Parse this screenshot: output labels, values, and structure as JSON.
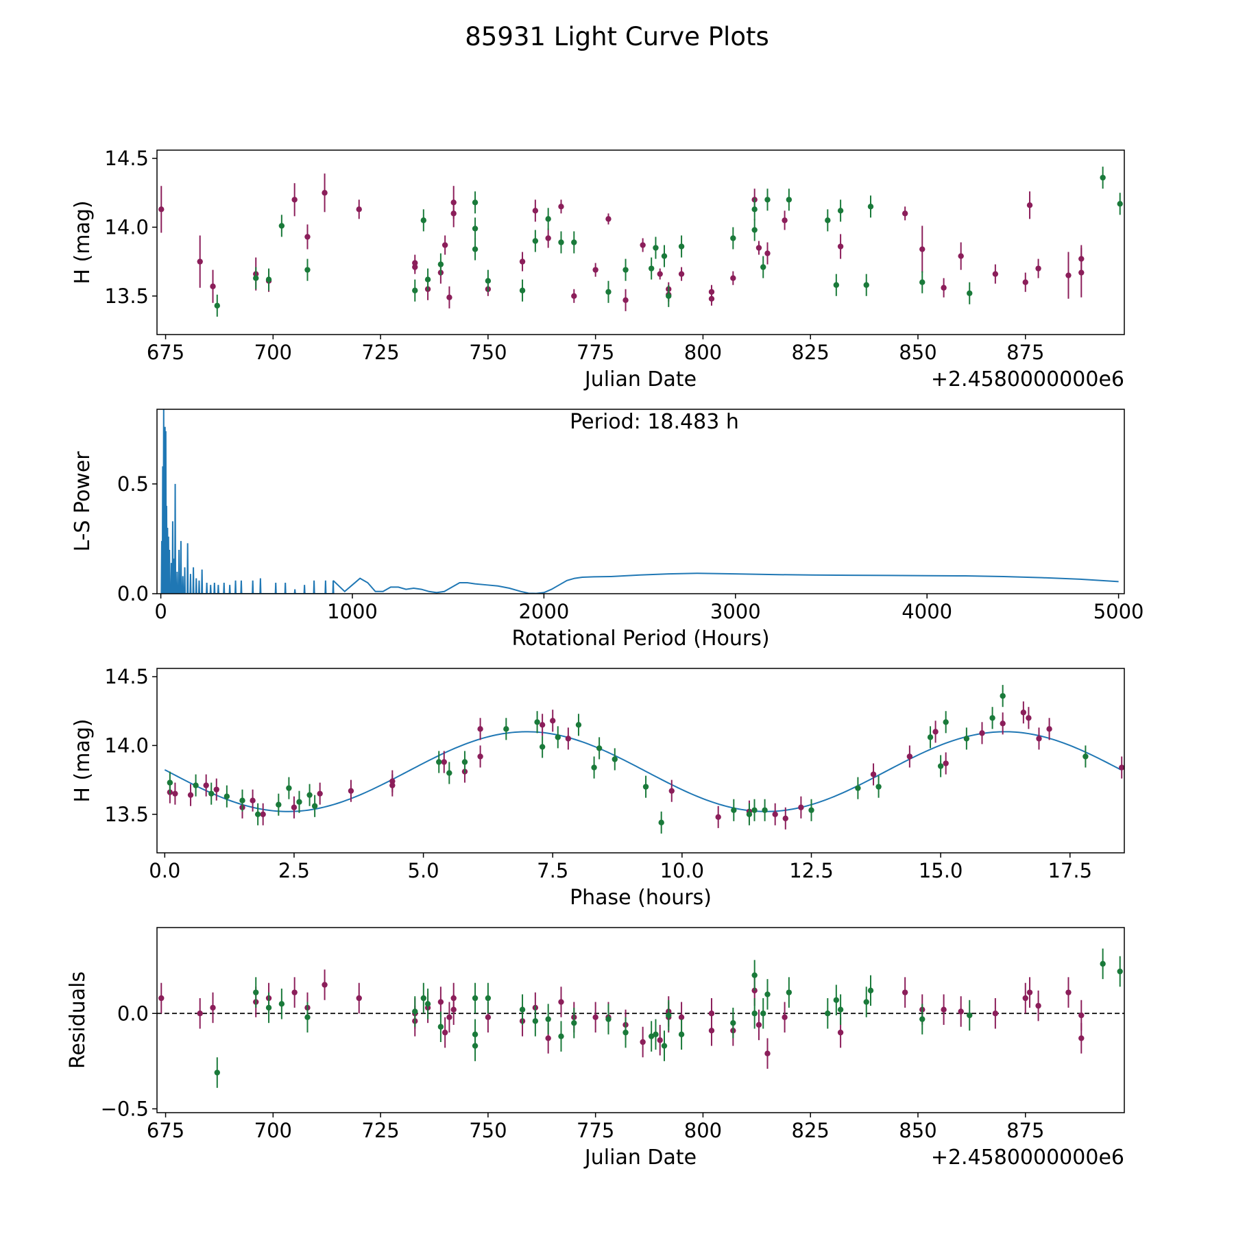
{
  "figure_title": "85931 Light Curve Plots",
  "colors": {
    "filter_a": "#8b1e5a",
    "filter_b": "#1a7a3a",
    "model": "#1f77b4",
    "axis": "#000000"
  },
  "chart_data": [
    {
      "type": "scatter",
      "name": "light-curve",
      "xlabel": "Julian Date",
      "ylabel": "H (mag)",
      "offset_label": "+2.4580000000e6",
      "xlim": [
        673,
        898
      ],
      "ylim": [
        13.22,
        14.56
      ],
      "xticks": [
        675,
        700,
        725,
        750,
        775,
        800,
        825,
        850,
        875
      ],
      "yticks": [
        13.5,
        14.0,
        14.5
      ],
      "tick_labels_x": [
        "675",
        "700",
        "725",
        "750",
        "775",
        "800",
        "825",
        "850",
        "875"
      ],
      "tick_labels_y": [
        "13.5",
        "14.0",
        "14.5"
      ],
      "series": [
        {
          "name": "filter-a",
          "color": "#8b1e5a",
          "x": [
            674,
            683,
            686,
            696,
            699,
            705,
            708,
            712,
            720,
            733,
            733,
            736,
            739,
            740,
            741,
            742,
            742,
            750,
            758,
            761,
            764,
            767,
            770,
            775,
            778,
            782,
            786,
            790,
            792,
            792,
            795,
            802,
            802,
            807,
            812,
            813,
            815,
            819,
            832,
            847,
            851,
            856,
            860,
            868,
            875,
            876,
            878,
            885,
            888,
            888
          ],
          "y": [
            14.13,
            13.75,
            13.57,
            13.66,
            13.61,
            14.2,
            13.93,
            14.25,
            14.13,
            13.74,
            13.71,
            13.55,
            13.67,
            13.87,
            13.49,
            14.18,
            14.1,
            13.55,
            13.75,
            14.12,
            13.92,
            14.15,
            13.5,
            13.69,
            14.06,
            13.47,
            13.87,
            13.66,
            13.55,
            13.51,
            13.66,
            13.53,
            13.48,
            13.63,
            14.2,
            13.85,
            13.81,
            14.05,
            13.86,
            14.1,
            13.84,
            13.56,
            13.79,
            13.66,
            13.6,
            14.16,
            13.7,
            13.65,
            13.77,
            13.67
          ],
          "err": [
            0.17,
            0.19,
            0.12,
            0.12,
            0.08,
            0.12,
            0.09,
            0.14,
            0.07,
            0.06,
            0.05,
            0.08,
            0.08,
            0.07,
            0.08,
            0.12,
            0.1,
            0.05,
            0.07,
            0.08,
            0.07,
            0.05,
            0.05,
            0.05,
            0.04,
            0.08,
            0.05,
            0.04,
            0.05,
            0.05,
            0.05,
            0.05,
            0.05,
            0.05,
            0.08,
            0.05,
            0.08,
            0.07,
            0.09,
            0.05,
            0.17,
            0.07,
            0.1,
            0.07,
            0.07,
            0.1,
            0.07,
            0.17,
            0.1,
            0.18
          ]
        },
        {
          "name": "filter-b",
          "color": "#1a7a3a",
          "x": [
            687,
            696,
            699,
            702,
            708,
            733,
            735,
            736,
            739,
            747,
            747,
            747,
            750,
            758,
            761,
            764,
            767,
            770,
            778,
            782,
            788,
            789,
            791,
            792,
            795,
            807,
            812,
            812,
            814,
            815,
            820,
            829,
            831,
            832,
            838,
            839,
            851,
            862,
            893,
            897
          ],
          "y": [
            13.43,
            13.63,
            13.62,
            14.01,
            13.69,
            13.54,
            14.05,
            13.62,
            13.73,
            14.18,
            13.99,
            13.84,
            13.61,
            13.54,
            13.9,
            14.06,
            13.89,
            13.89,
            13.53,
            13.69,
            13.7,
            13.85,
            13.79,
            13.5,
            13.86,
            13.92,
            14.13,
            13.98,
            13.71,
            14.2,
            14.2,
            14.05,
            13.58,
            14.12,
            13.58,
            14.15,
            13.6,
            13.52,
            14.36,
            14.17
          ]
        }
      ]
    },
    {
      "type": "line",
      "name": "periodogram",
      "xlabel": "Rotational Period (Hours)",
      "ylabel": "L-S Power",
      "annotation": "Period: 18.483 h",
      "xlim": [
        -20,
        5030
      ],
      "ylim": [
        0,
        0.84
      ],
      "xticks": [
        0,
        1000,
        2000,
        3000,
        4000,
        5000
      ],
      "yticks": [
        0.0,
        0.5
      ],
      "tick_labels_x": [
        "0",
        "1000",
        "2000",
        "3000",
        "4000",
        "5000"
      ],
      "tick_labels_y": [
        "0.0",
        "0.5"
      ],
      "peaks": {
        "x": [
          5,
          10,
          15,
          18,
          22,
          26,
          30,
          35,
          40,
          45,
          55,
          62,
          68,
          75,
          85,
          95,
          105,
          115,
          125,
          140,
          155,
          170,
          185,
          200,
          215,
          240,
          260,
          280,
          300,
          330,
          360,
          390,
          420,
          480,
          520,
          600,
          650,
          700,
          750,
          800,
          860,
          900
        ],
        "y": [
          0.24,
          0.58,
          0.84,
          0.6,
          0.76,
          0.74,
          0.4,
          0.3,
          0.26,
          0.2,
          0.14,
          0.33,
          0.16,
          0.5,
          0.1,
          0.2,
          0.24,
          0.08,
          0.12,
          0.23,
          0.09,
          0.12,
          0.07,
          0.06,
          0.11,
          0.05,
          0.04,
          0.05,
          0.04,
          0.05,
          0.04,
          0.06,
          0.06,
          0.06,
          0.07,
          0.05,
          0.05,
          0.02,
          0.04,
          0.06,
          0.06,
          0.06
        ]
      },
      "x": [
        900,
        960,
        1000,
        1040,
        1080,
        1120,
        1160,
        1200,
        1240,
        1280,
        1320,
        1360,
        1400,
        1440,
        1480,
        1520,
        1560,
        1600,
        1640,
        1700,
        1760,
        1820,
        1880,
        1920,
        1960,
        2000,
        2040,
        2080,
        2120,
        2160,
        2200,
        2260,
        2350,
        2500,
        2650,
        2800,
        3000,
        3200,
        3400,
        3600,
        3800,
        4000,
        4200,
        4400,
        4600,
        4800,
        5000
      ],
      "y": [
        0.06,
        0.01,
        0.04,
        0.07,
        0.05,
        0.01,
        0.01,
        0.03,
        0.03,
        0.02,
        0.025,
        0.02,
        0.01,
        0.005,
        0.01,
        0.03,
        0.05,
        0.05,
        0.045,
        0.04,
        0.035,
        0.025,
        0.01,
        0.002,
        0.001,
        0.005,
        0.02,
        0.04,
        0.06,
        0.07,
        0.075,
        0.077,
        0.078,
        0.085,
        0.09,
        0.093,
        0.09,
        0.087,
        0.085,
        0.084,
        0.083,
        0.082,
        0.081,
        0.078,
        0.073,
        0.066,
        0.055
      ]
    },
    {
      "type": "scatter",
      "name": "phased-curve",
      "xlabel": "Phase (hours)",
      "ylabel": "H (mag)",
      "xlim": [
        -0.15,
        18.55
      ],
      "ylim": [
        13.22,
        14.56
      ],
      "xticks": [
        0.0,
        2.5,
        5.0,
        7.5,
        10.0,
        12.5,
        15.0,
        17.5
      ],
      "yticks": [
        13.5,
        14.0,
        14.5
      ],
      "tick_labels_x": [
        "0.0",
        "2.5",
        "5.0",
        "7.5",
        "10.0",
        "12.5",
        "15.0",
        "17.5"
      ],
      "tick_labels_y": [
        "13.5",
        "14.0",
        "14.5"
      ],
      "model": {
        "mean": 13.81,
        "amplitude": 0.29,
        "period": 9.2415,
        "peak_phase": 7.0
      },
      "series": [
        {
          "name": "filter-a",
          "color": "#8b1e5a",
          "x": [
            0.1,
            0.2,
            0.5,
            0.8,
            1.0,
            1.5,
            1.7,
            1.9,
            2.5,
            3.0,
            3.6,
            4.4,
            4.4,
            5.4,
            5.8,
            6.1,
            6.1,
            7.3,
            7.5,
            7.8,
            9.8,
            10.7,
            11.3,
            11.8,
            12.0,
            12.3,
            13.7,
            14.4,
            14.9,
            15.1,
            15.8,
            16.2,
            16.6,
            16.7,
            16.9,
            17.1,
            18.5
          ],
          "y": [
            13.66,
            13.65,
            13.64,
            13.71,
            13.68,
            13.55,
            13.6,
            13.5,
            13.55,
            13.65,
            13.67,
            13.74,
            13.71,
            13.88,
            13.81,
            14.12,
            13.92,
            14.15,
            14.18,
            14.05,
            13.67,
            13.48,
            13.52,
            13.5,
            13.47,
            13.55,
            13.79,
            13.92,
            14.1,
            13.87,
            14.09,
            14.16,
            14.24,
            14.2,
            14.05,
            14.12,
            13.84
          ]
        },
        {
          "name": "filter-b",
          "color": "#1a7a3a",
          "x": [
            0.1,
            0.6,
            0.9,
            1.2,
            1.5,
            1.8,
            2.2,
            2.4,
            2.6,
            2.8,
            2.9,
            5.3,
            5.5,
            5.8,
            6.6,
            7.2,
            7.3,
            7.6,
            8.0,
            8.3,
            8.4,
            8.7,
            9.3,
            9.6,
            11.0,
            11.3,
            11.4,
            11.6,
            12.5,
            13.4,
            13.8,
            14.8,
            15.0,
            15.1,
            15.5,
            16.0,
            16.2,
            17.8
          ],
          "y": [
            13.73,
            13.71,
            13.65,
            13.63,
            13.6,
            13.5,
            13.57,
            13.69,
            13.59,
            13.64,
            13.56,
            13.88,
            13.8,
            13.88,
            14.12,
            14.17,
            13.99,
            14.06,
            14.15,
            13.84,
            13.98,
            13.9,
            13.7,
            13.44,
            13.53,
            13.5,
            13.53,
            13.53,
            13.53,
            13.69,
            13.7,
            14.06,
            13.85,
            14.17,
            14.05,
            14.2,
            14.36,
            13.92
          ]
        }
      ]
    },
    {
      "type": "scatter",
      "name": "residuals",
      "xlabel": "Julian Date",
      "ylabel": "Residuals",
      "offset_label": "+2.4580000000e6",
      "xlim": [
        673,
        898
      ],
      "ylim": [
        -0.52,
        0.45
      ],
      "xticks": [
        675,
        700,
        725,
        750,
        775,
        800,
        825,
        850,
        875
      ],
      "yticks": [
        -0.5,
        0.0
      ],
      "tick_labels_x": [
        "675",
        "700",
        "725",
        "750",
        "775",
        "800",
        "825",
        "850",
        "875"
      ],
      "tick_labels_y": [
        "−0.5",
        "0.0"
      ],
      "zero_line": 0.0,
      "series": [
        {
          "name": "filter-a",
          "color": "#8b1e5a",
          "x": [
            674,
            683,
            686,
            696,
            699,
            705,
            708,
            712,
            720,
            733,
            733,
            736,
            739,
            740,
            741,
            742,
            742,
            750,
            758,
            761,
            764,
            767,
            770,
            775,
            778,
            782,
            786,
            790,
            792,
            792,
            795,
            802,
            802,
            807,
            812,
            813,
            815,
            819,
            832,
            847,
            851,
            856,
            860,
            868,
            875,
            876,
            878,
            885,
            888,
            888
          ],
          "y": [
            0.08,
            0.0,
            0.03,
            0.06,
            0.08,
            0.11,
            0.03,
            0.15,
            0.08,
            0.0,
            -0.04,
            0.03,
            0.06,
            -0.1,
            -0.02,
            0.08,
            0.02,
            -0.02,
            -0.04,
            0.03,
            -0.13,
            0.06,
            -0.02,
            -0.02,
            -0.02,
            -0.06,
            -0.15,
            -0.14,
            0.01,
            -0.02,
            -0.02,
            0.0,
            -0.09,
            -0.09,
            0.12,
            -0.06,
            -0.21,
            -0.02,
            -0.1,
            0.11,
            0.02,
            0.02,
            0.01,
            0.0,
            0.08,
            0.11,
            0.04,
            0.11,
            -0.13,
            -0.01
          ]
        },
        {
          "name": "filter-b",
          "color": "#1a7a3a",
          "x": [
            687,
            696,
            699,
            702,
            708,
            733,
            735,
            736,
            739,
            747,
            747,
            747,
            750,
            758,
            761,
            764,
            767,
            770,
            778,
            782,
            788,
            789,
            791,
            792,
            795,
            807,
            812,
            812,
            814,
            815,
            820,
            829,
            831,
            832,
            838,
            839,
            851,
            862,
            893,
            897
          ],
          "y": [
            -0.31,
            0.11,
            0.03,
            0.05,
            -0.02,
            0.01,
            0.08,
            0.05,
            -0.07,
            0.08,
            -0.11,
            -0.17,
            0.08,
            0.02,
            -0.04,
            -0.03,
            -0.12,
            -0.05,
            -0.03,
            -0.1,
            -0.12,
            -0.11,
            -0.17,
            -0.01,
            -0.11,
            -0.05,
            0.2,
            0.0,
            0.0,
            0.1,
            0.11,
            0.0,
            0.07,
            0.02,
            0.06,
            0.12,
            -0.03,
            -0.01,
            0.26,
            0.22
          ]
        }
      ]
    }
  ]
}
